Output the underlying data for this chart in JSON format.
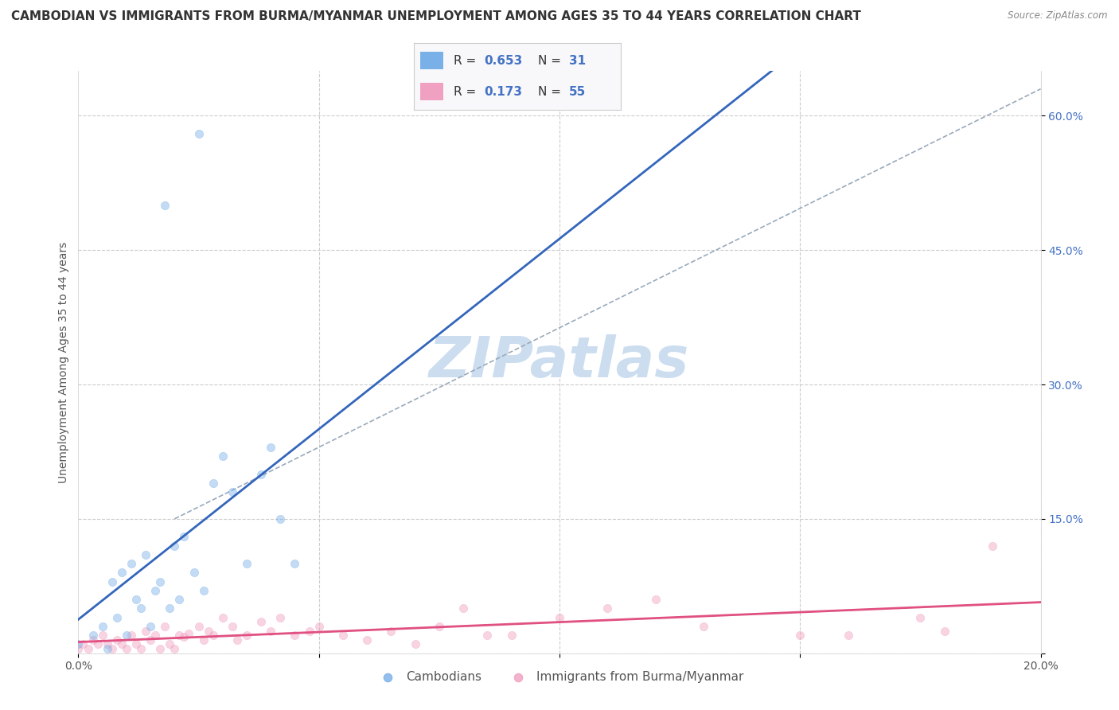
{
  "title": "CAMBODIAN VS IMMIGRANTS FROM BURMA/MYANMAR UNEMPLOYMENT AMONG AGES 35 TO 44 YEARS CORRELATION CHART",
  "source": "Source: ZipAtlas.com",
  "ylabel": "Unemployment Among Ages 35 to 44 years",
  "xlim": [
    0.0,
    0.2
  ],
  "ylim": [
    0.0,
    0.65
  ],
  "yticks": [
    0.0,
    0.15,
    0.3,
    0.45,
    0.6
  ],
  "ytick_labels": [
    "",
    "15.0%",
    "30.0%",
    "45.0%",
    "60.0%"
  ],
  "xticks": [
    0.0,
    0.05,
    0.1,
    0.15,
    0.2
  ],
  "xtick_labels": [
    "0.0%",
    "",
    "",
    "",
    "20.0%"
  ],
  "r_cambodian": 0.653,
  "n_cambodian": 31,
  "r_burma": 0.173,
  "n_burma": 55,
  "cambodian_scatter_x": [
    0.0,
    0.003,
    0.005,
    0.006,
    0.007,
    0.008,
    0.009,
    0.01,
    0.011,
    0.012,
    0.013,
    0.014,
    0.015,
    0.016,
    0.017,
    0.018,
    0.019,
    0.02,
    0.021,
    0.022,
    0.024,
    0.025,
    0.026,
    0.028,
    0.03,
    0.032,
    0.035,
    0.038,
    0.04,
    0.042,
    0.045
  ],
  "cambodian_scatter_y": [
    0.01,
    0.02,
    0.03,
    0.005,
    0.08,
    0.04,
    0.09,
    0.02,
    0.1,
    0.06,
    0.05,
    0.11,
    0.03,
    0.07,
    0.08,
    0.5,
    0.05,
    0.12,
    0.06,
    0.13,
    0.09,
    0.58,
    0.07,
    0.19,
    0.22,
    0.18,
    0.1,
    0.2,
    0.23,
    0.15,
    0.1
  ],
  "burma_scatter_x": [
    0.0,
    0.001,
    0.002,
    0.003,
    0.004,
    0.005,
    0.006,
    0.007,
    0.008,
    0.009,
    0.01,
    0.011,
    0.012,
    0.013,
    0.014,
    0.015,
    0.016,
    0.017,
    0.018,
    0.019,
    0.02,
    0.021,
    0.022,
    0.023,
    0.025,
    0.026,
    0.027,
    0.028,
    0.03,
    0.032,
    0.033,
    0.035,
    0.038,
    0.04,
    0.042,
    0.045,
    0.048,
    0.05,
    0.055,
    0.06,
    0.065,
    0.07,
    0.075,
    0.08,
    0.085,
    0.09,
    0.1,
    0.11,
    0.12,
    0.13,
    0.15,
    0.16,
    0.175,
    0.18,
    0.19
  ],
  "burma_scatter_y": [
    0.005,
    0.01,
    0.005,
    0.015,
    0.01,
    0.02,
    0.01,
    0.005,
    0.015,
    0.01,
    0.005,
    0.02,
    0.01,
    0.005,
    0.025,
    0.015,
    0.02,
    0.005,
    0.03,
    0.01,
    0.005,
    0.02,
    0.018,
    0.022,
    0.03,
    0.015,
    0.025,
    0.02,
    0.04,
    0.03,
    0.015,
    0.02,
    0.035,
    0.025,
    0.04,
    0.02,
    0.025,
    0.03,
    0.02,
    0.015,
    0.025,
    0.01,
    0.03,
    0.05,
    0.02,
    0.02,
    0.04,
    0.05,
    0.06,
    0.03,
    0.02,
    0.02,
    0.04,
    0.025,
    0.12
  ],
  "bg_color": "#ffffff",
  "grid_color": "#cccccc",
  "scatter_alpha": 0.45,
  "scatter_size": 55,
  "cambodian_color": "#7ab0e8",
  "burma_color": "#f0a0c0",
  "cambodian_line_color": "#3366bb",
  "burma_line_color": "#e05080",
  "diagonal_color": "#99aabb",
  "title_fontsize": 11,
  "axis_label_fontsize": 10,
  "tick_fontsize": 10,
  "watermark_color": "#ccddf0",
  "watermark_fontsize": 52
}
